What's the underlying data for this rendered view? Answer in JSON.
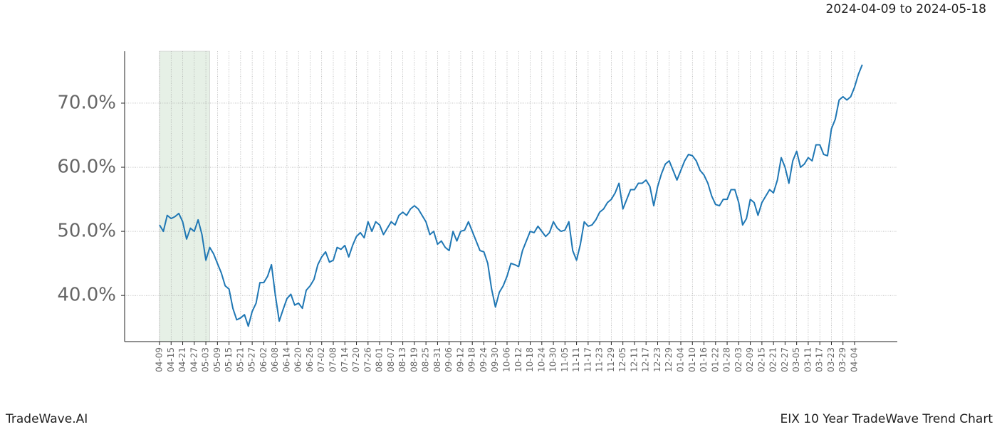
{
  "header": {
    "date_range": "2024-04-09 to 2024-05-18"
  },
  "footer": {
    "brand": "TradeWave.AI",
    "caption": "EIX 10 Year TradeWave Trend Chart"
  },
  "chart_data": {
    "type": "line",
    "categories": [
      "04-09",
      null,
      null,
      "04-15",
      null,
      null,
      "04-21",
      null,
      null,
      "04-27",
      null,
      null,
      "05-03",
      null,
      null,
      "05-09",
      null,
      null,
      "05-15",
      null,
      null,
      "05-21",
      null,
      null,
      "05-27",
      null,
      null,
      "06-02",
      null,
      null,
      "06-08",
      null,
      null,
      "06-14",
      null,
      null,
      "06-20",
      null,
      null,
      "06-26",
      null,
      null,
      "07-02",
      null,
      null,
      "07-08",
      null,
      null,
      "07-14",
      null,
      null,
      "07-20",
      null,
      null,
      "07-26",
      null,
      null,
      "08-01",
      null,
      null,
      "08-07",
      null,
      null,
      "08-13",
      null,
      null,
      "08-19",
      null,
      null,
      "08-25",
      null,
      null,
      "08-31",
      null,
      null,
      "09-06",
      null,
      null,
      "09-12",
      null,
      null,
      "09-18",
      null,
      null,
      "09-24",
      null,
      null,
      "09-30",
      null,
      null,
      "10-06",
      null,
      null,
      "10-12",
      null,
      null,
      "10-18",
      null,
      null,
      "10-24",
      null,
      null,
      "10-30",
      null,
      null,
      "11-05",
      null,
      null,
      "11-11",
      null,
      null,
      "11-17",
      null,
      null,
      "11-23",
      null,
      null,
      "11-29",
      null,
      null,
      "12-05",
      null,
      null,
      "12-11",
      null,
      null,
      "12-17",
      null,
      null,
      "12-23",
      null,
      null,
      "12-29",
      null,
      null,
      "01-04",
      null,
      null,
      "01-10",
      null,
      null,
      "01-16",
      null,
      null,
      "01-22",
      null,
      null,
      "01-28",
      null,
      null,
      "02-03",
      null,
      null,
      "02-09",
      null,
      null,
      "02-15",
      null,
      null,
      "02-21",
      null,
      null,
      "02-27",
      null,
      null,
      "03-05",
      null,
      null,
      "03-11",
      null,
      null,
      "03-17",
      null,
      null,
      "03-23",
      null,
      null,
      "03-29",
      null,
      null,
      "04-04",
      null,
      null
    ],
    "series": [
      {
        "color": "#1f77b4",
        "values": [
          51.0,
          50.0,
          52.5,
          52.0,
          52.3,
          52.8,
          51.5,
          48.8,
          50.5,
          50.0,
          51.8,
          49.5,
          45.5,
          47.5,
          46.5,
          45.0,
          43.5,
          41.5,
          41.0,
          38.0,
          36.2,
          36.5,
          37.0,
          35.2,
          37.5,
          38.8,
          42.0,
          42.0,
          43.0,
          44.8,
          40.0,
          36.0,
          37.8,
          39.5,
          40.2,
          38.5,
          38.8,
          38.0,
          40.8,
          41.5,
          42.5,
          44.8,
          46.0,
          46.8,
          45.2,
          45.5,
          47.5,
          47.2,
          47.8,
          46.0,
          47.8,
          49.2,
          49.8,
          49.0,
          51.5,
          50.0,
          51.5,
          51.0,
          49.5,
          50.5,
          51.5,
          51.0,
          52.5,
          53.0,
          52.5,
          53.5,
          54.0,
          53.5,
          52.5,
          51.5,
          49.5,
          50.0,
          48.0,
          48.5,
          47.5,
          47.0,
          50.0,
          48.5,
          50.0,
          50.2,
          51.5,
          50.0,
          48.5,
          47.0,
          46.8,
          45.0,
          41.0,
          38.2,
          40.5,
          41.5,
          43.0,
          45.0,
          44.8,
          44.5,
          47.0,
          48.5,
          50.0,
          49.8,
          50.8,
          50.0,
          49.2,
          49.8,
          51.5,
          50.5,
          50.0,
          50.2,
          51.5,
          47.0,
          45.5,
          48.0,
          51.5,
          50.8,
          51.0,
          51.8,
          53.0,
          53.5,
          54.5,
          55.0,
          56.0,
          57.5,
          53.5,
          55.0,
          56.5,
          56.5,
          57.5,
          57.5,
          58.0,
          57.0,
          54.0,
          57.0,
          59.0,
          60.5,
          61.0,
          59.5,
          58.0,
          59.5,
          61.0,
          62.0,
          61.8,
          61.0,
          59.5,
          58.8,
          57.5,
          55.5,
          54.2,
          54.0,
          55.0,
          55.0,
          56.5,
          56.5,
          54.5,
          51.0,
          52.0,
          55.0,
          54.5,
          52.5,
          54.5,
          55.5,
          56.5,
          56.0,
          58.0,
          61.5,
          60.0,
          57.5,
          61.0,
          62.5,
          60.0,
          60.5,
          61.5,
          61.0,
          63.5,
          63.5,
          62.0,
          61.8,
          66.0,
          67.5,
          70.5,
          71.0,
          70.5,
          71.0,
          72.5,
          74.5,
          76.0
        ]
      }
    ],
    "ylim": [
      32.8,
      78.1
    ],
    "yticks": [
      {
        "value": 40,
        "label": "40.0%"
      },
      {
        "value": 50,
        "label": "50.0%"
      },
      {
        "value": 60,
        "label": "60.0%"
      },
      {
        "value": 70,
        "label": "70.0%"
      }
    ],
    "grid": true,
    "shaded_span": [
      0,
      13
    ],
    "shade_color": "#e6f0e6"
  }
}
